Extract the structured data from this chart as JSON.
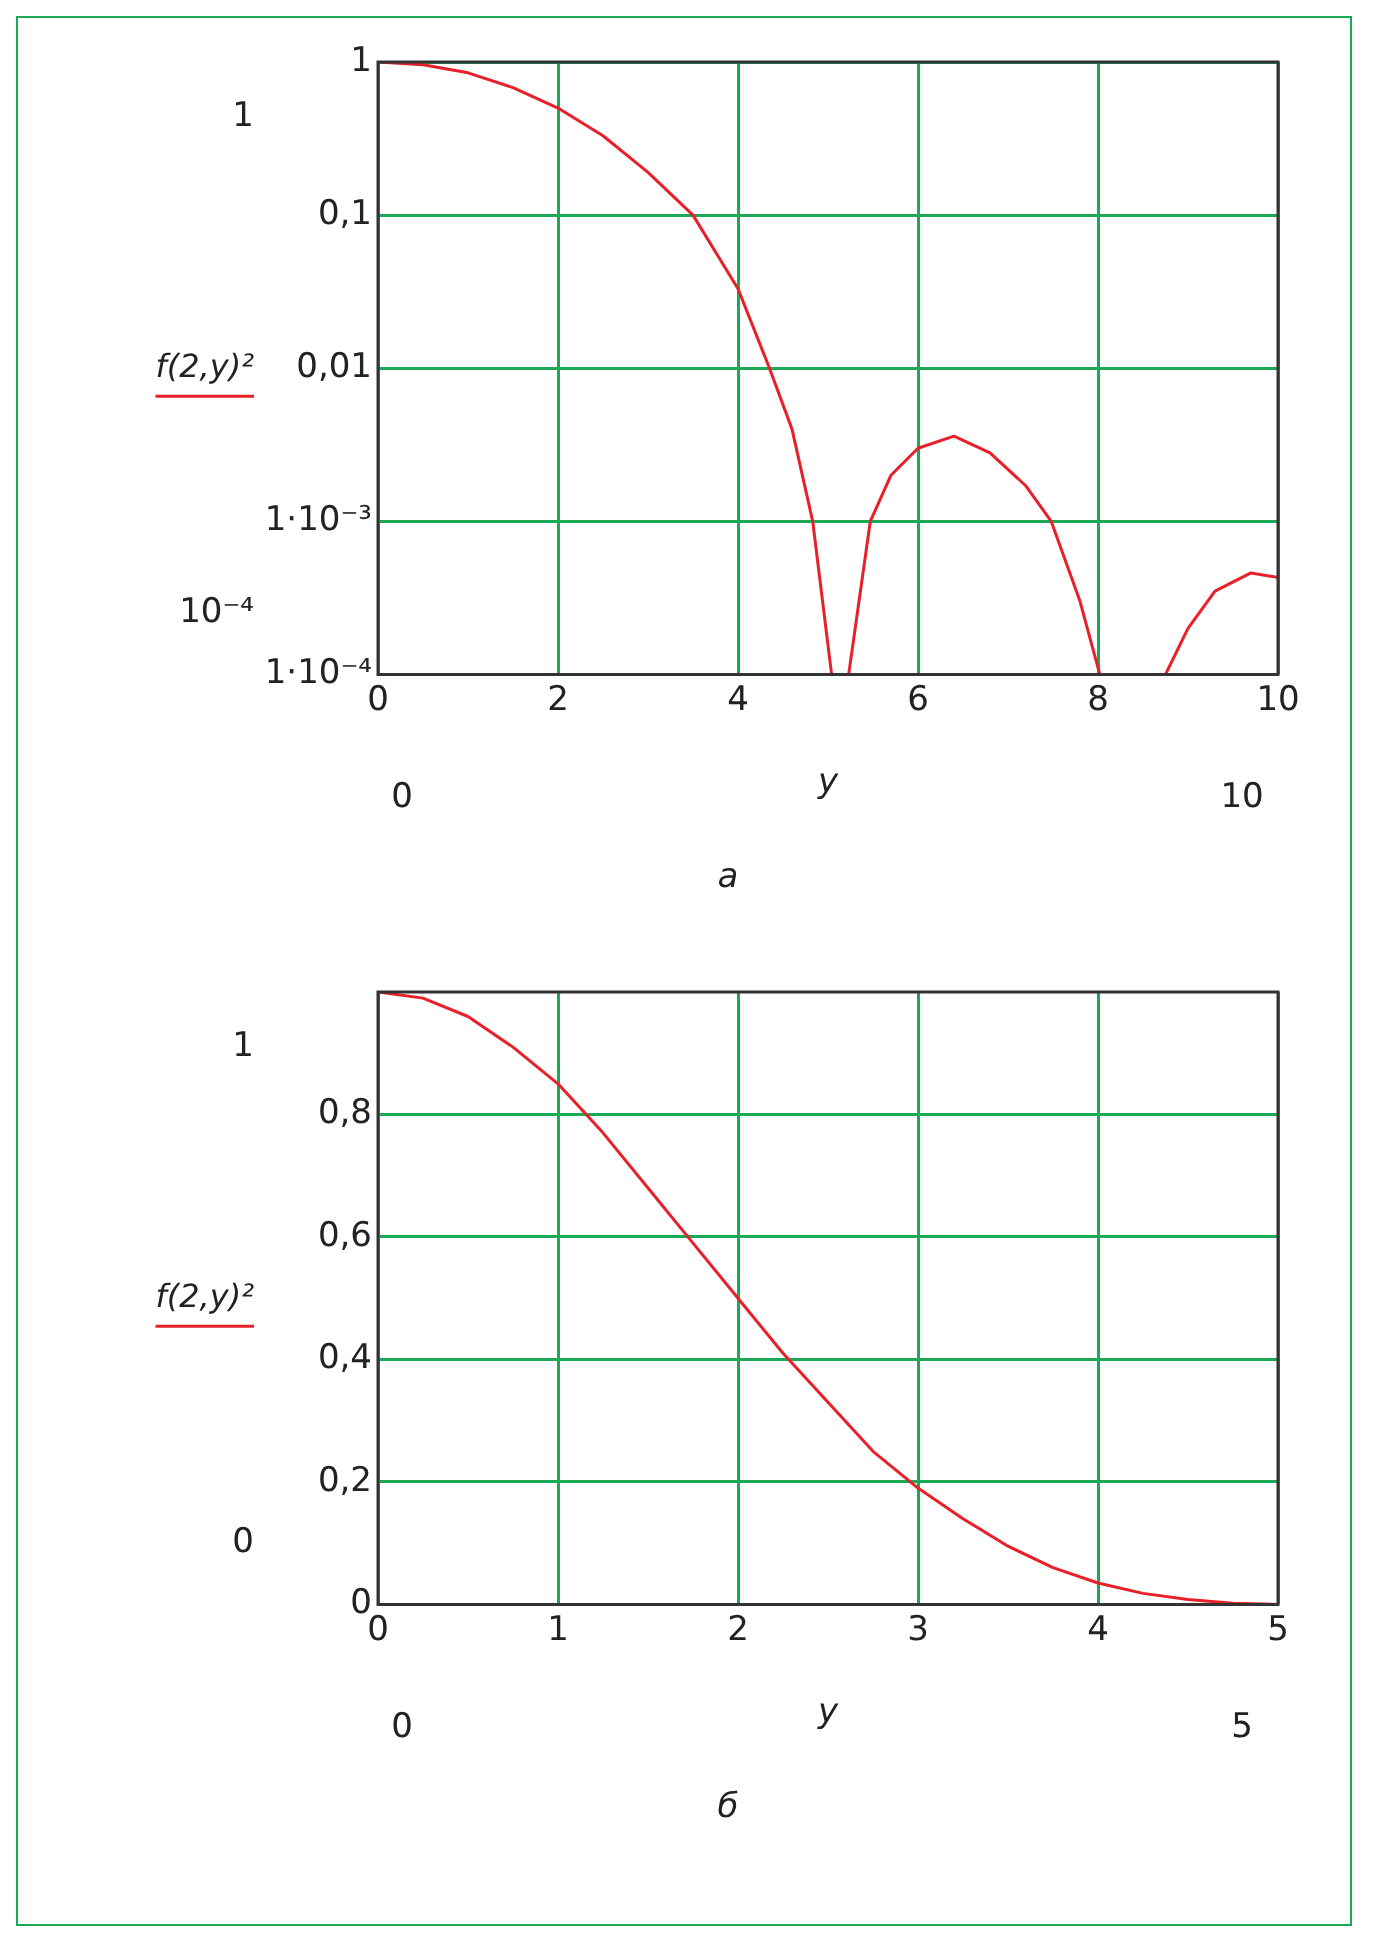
{
  "chart_data": [
    {
      "type": "line",
      "xlabel": "y",
      "log": "y",
      "grid": true,
      "legend": "left",
      "marker": "none",
      "line_style": "solid",
      "annotations": [
        "1",
        "10⁻⁴",
        "0",
        "10",
        "а"
      ],
      "xlim": [
        0,
        10
      ],
      "xticks": [
        0,
        2,
        4,
        6,
        8,
        10
      ],
      "ylim": [
        0.0001,
        1
      ],
      "yticks": [
        1,
        {
          "value": 0.1,
          "label": "0,1"
        },
        {
          "value": 0.01,
          "label": "0,01"
        },
        {
          "value": 0.001,
          "label": "1·10⁻³"
        },
        {
          "value": 0.0001,
          "label": "1·10⁻⁴"
        }
      ],
      "x": [
        0,
        0.5,
        1,
        1.5,
        2,
        2.5,
        3,
        3.5,
        4,
        4.35,
        4.6,
        4.83,
        5.04,
        5.23,
        5.47,
        5.7,
        6,
        6.4,
        6.8,
        7.2,
        7.48,
        7.8,
        8.02,
        8.75,
        9,
        9.3,
        9.7,
        10
      ],
      "series": [
        {
          "name": "f(2,y)²",
          "color": "#e8202a",
          "values": [
            1,
            0.96,
            0.85,
            0.68,
            0.5,
            0.33,
            0.19,
            0.1,
            0.033,
            0.01,
            0.004,
            0.001,
            0.0001,
            0.0001,
            0.001,
            0.002,
            0.003,
            0.0036,
            0.0028,
            0.0017,
            0.001,
            0.0003,
            0.0001,
            0.0001,
            0.0002,
            0.00035,
            0.00046,
            0.00043
          ]
        }
      ]
    },
    {
      "type": "line",
      "xlabel": "y",
      "grid": true,
      "legend": "left",
      "marker": "none",
      "line_style": "solid",
      "annotations": [
        "1",
        "0",
        "0",
        "5",
        "б"
      ],
      "xlim": [
        0,
        5
      ],
      "xticks": [
        0,
        1,
        2,
        3,
        4,
        5
      ],
      "ylim": [
        0,
        1
      ],
      "yticks": [
        0,
        {
          "value": 0.2,
          "label": "0,2"
        },
        {
          "value": 0.4,
          "label": "0,4"
        },
        {
          "value": 0.6,
          "label": "0,6"
        },
        {
          "value": 0.8,
          "label": "0,8"
        }
      ],
      "x": [
        0,
        0.25,
        0.5,
        0.75,
        1,
        1.25,
        1.5,
        1.75,
        2,
        2.25,
        2.5,
        2.75,
        3,
        3.25,
        3.5,
        3.75,
        4,
        4.25,
        4.5,
        4.75,
        5
      ],
      "series": [
        {
          "name": "f(2,y)²",
          "color": "#e8202a",
          "values": [
            1,
            0.99,
            0.96,
            0.91,
            0.85,
            0.77,
            0.68,
            0.59,
            0.5,
            0.41,
            0.33,
            0.25,
            0.19,
            0.14,
            0.095,
            0.06,
            0.035,
            0.018,
            0.008,
            0.002,
            0
          ]
        }
      ]
    }
  ]
}
